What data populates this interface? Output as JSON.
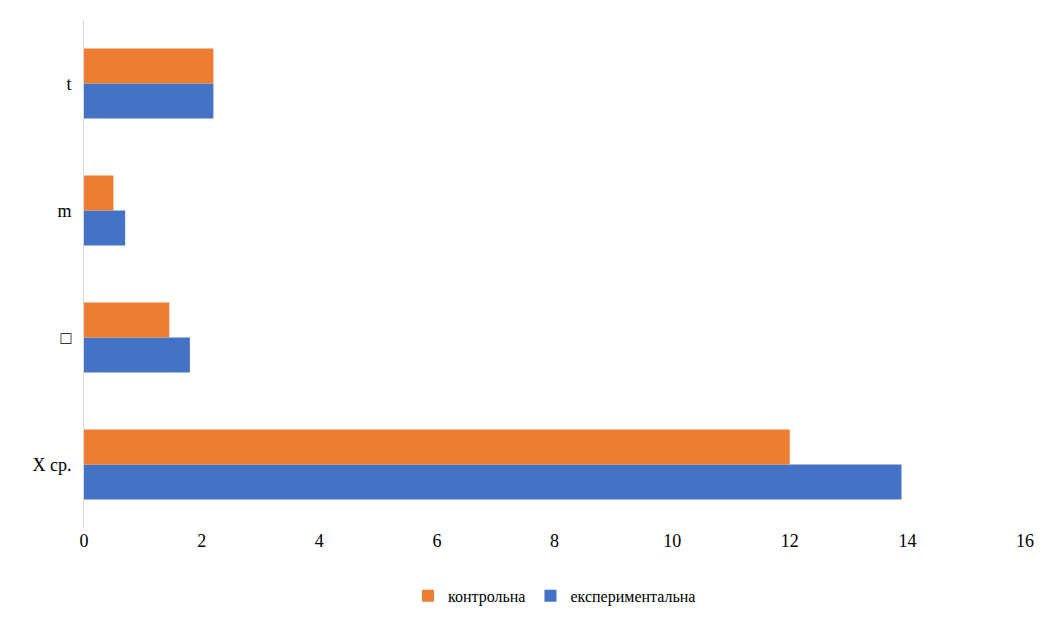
{
  "chart_data": {
    "type": "bar",
    "orientation": "horizontal",
    "categories": [
      "X ср.",
      "□",
      "m",
      "t"
    ],
    "series": [
      {
        "name": "контрольна",
        "color": "#ed7d31",
        "values": [
          12.0,
          1.45,
          0.5,
          2.2
        ]
      },
      {
        "name": "експериментальна",
        "color": "#4472c4",
        "values": [
          13.9,
          1.8,
          0.7,
          2.2
        ]
      }
    ],
    "xlim": [
      0,
      16
    ],
    "xticks": [
      0,
      2,
      4,
      6,
      8,
      10,
      12,
      14,
      16
    ],
    "grid": false,
    "legend": "bottom"
  }
}
